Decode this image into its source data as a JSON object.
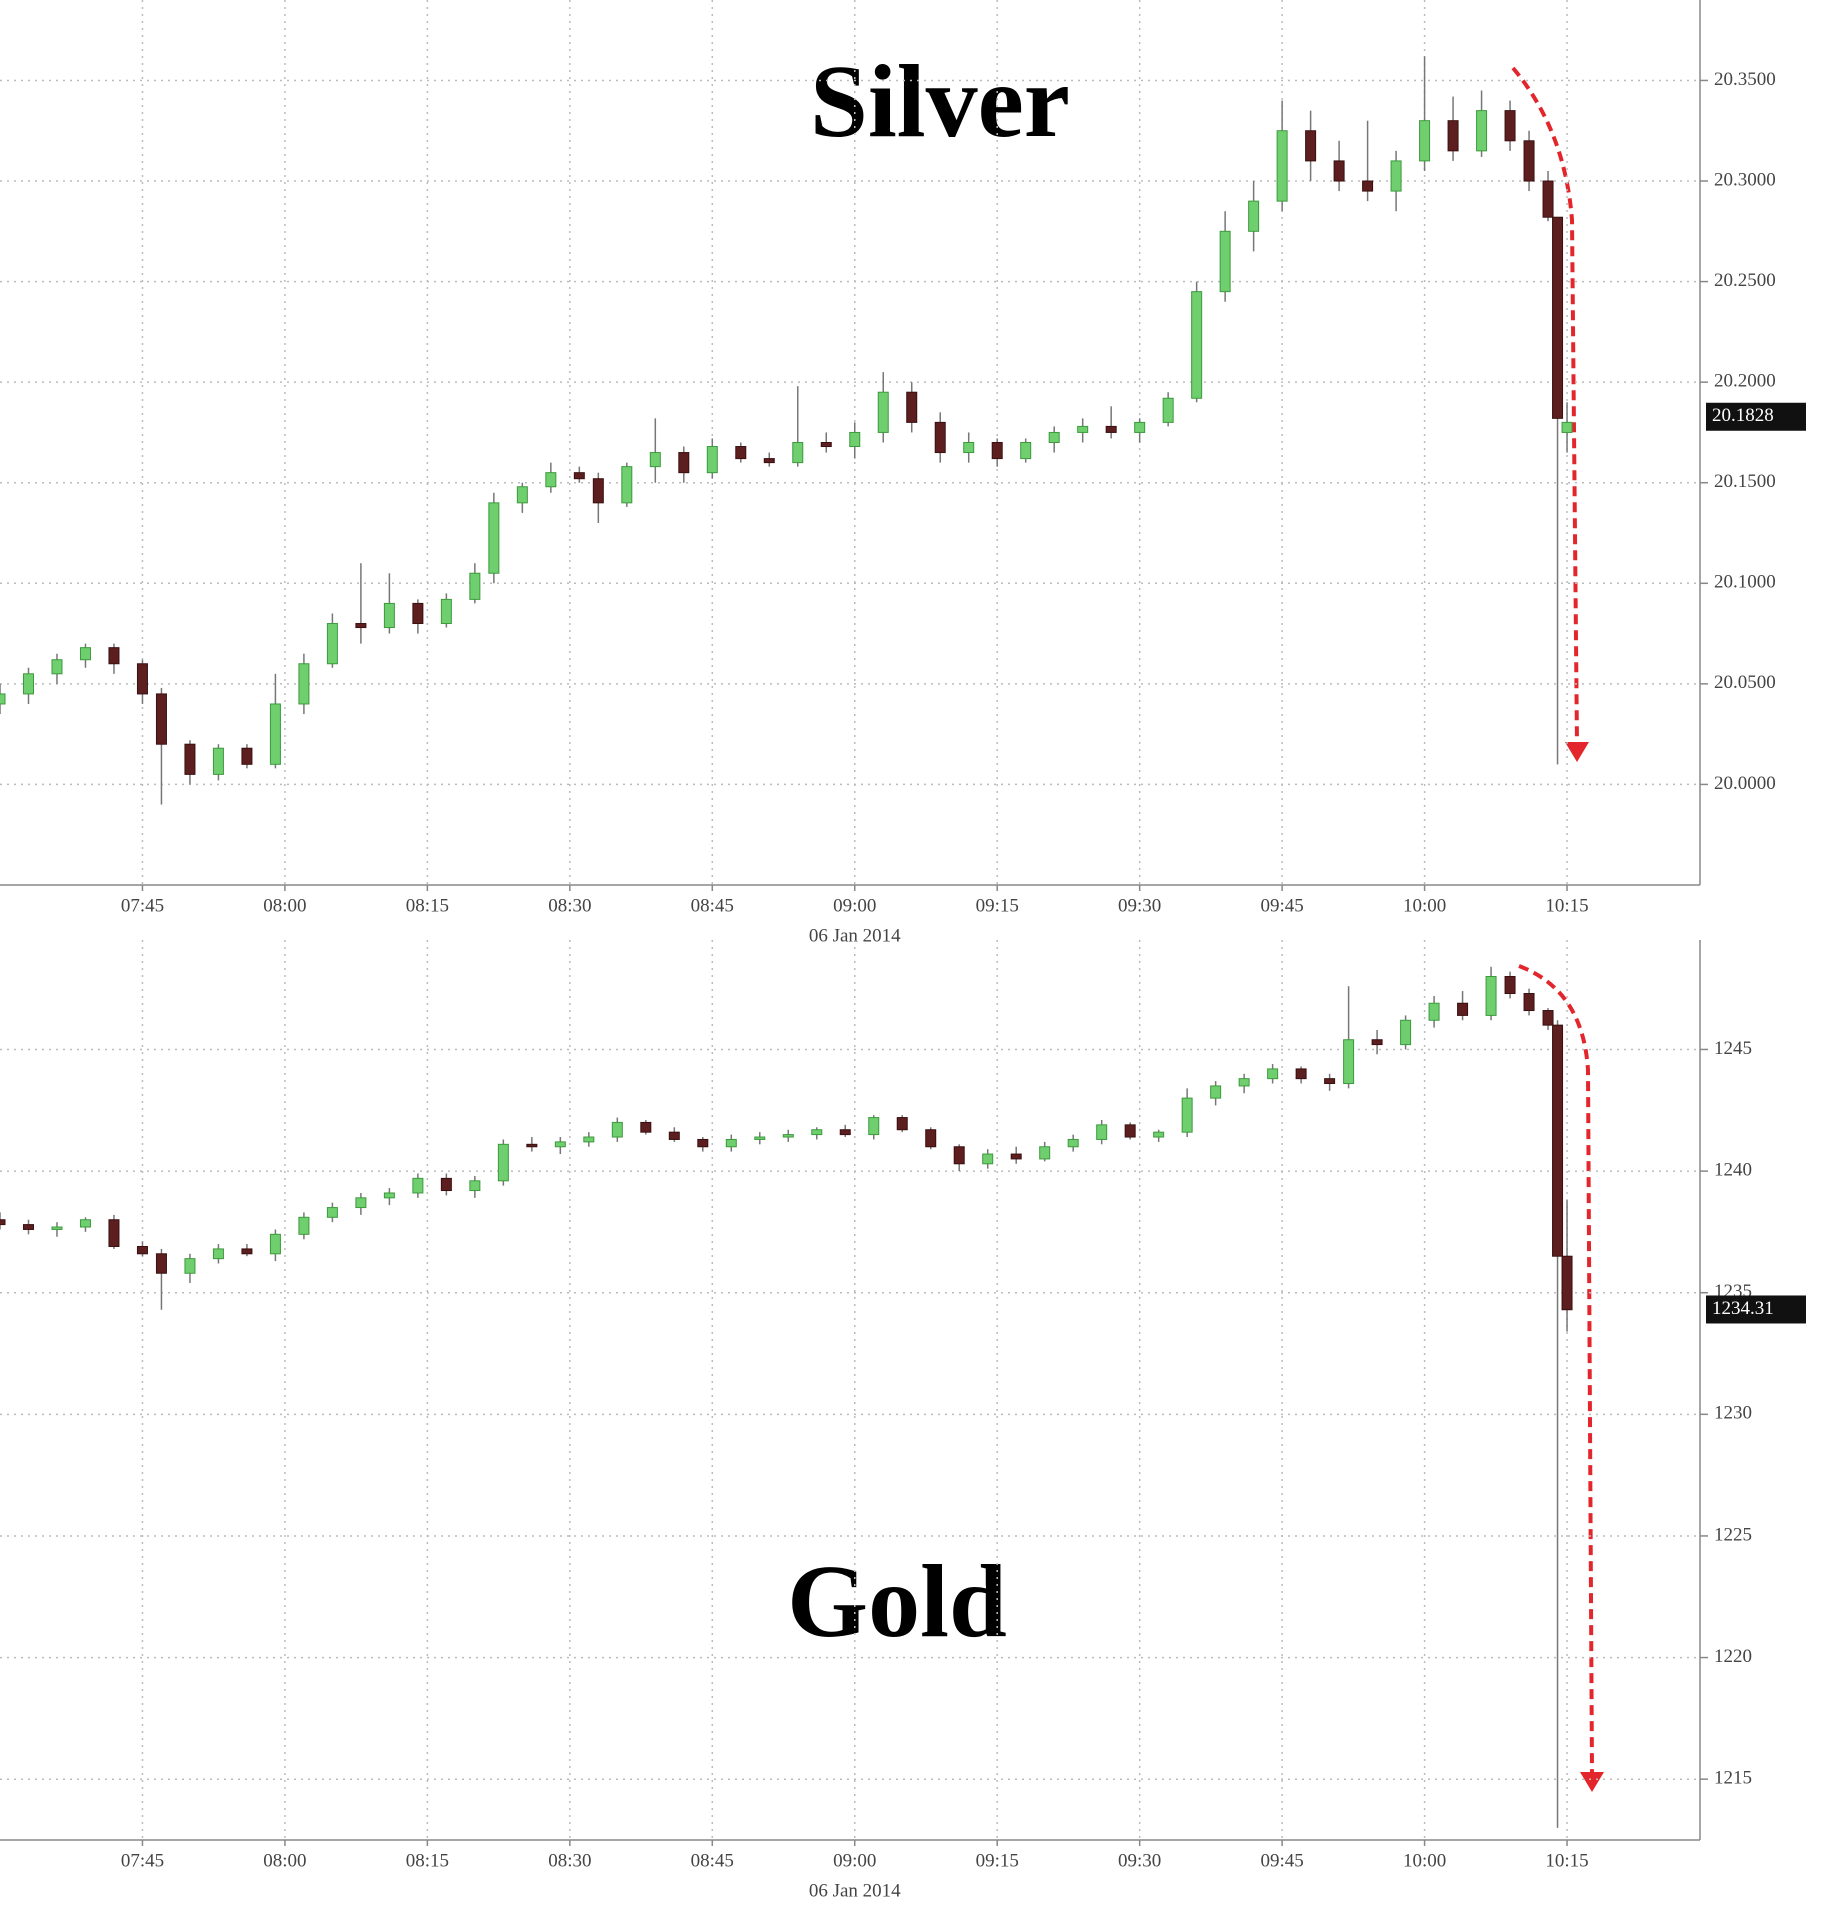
{
  "chart_data": [
    {
      "type": "candlestick",
      "title": "Silver",
      "date_label": "06 Jan 2014",
      "grid": true,
      "up_color": "#6fcf6f",
      "down_color": "#5c1e1e",
      "last_price": 20.1828,
      "xlim": [
        "07:30",
        "10:29"
      ],
      "xticks": [
        "07:45",
        "08:00",
        "08:15",
        "08:30",
        "08:45",
        "09:00",
        "09:15",
        "09:30",
        "09:45",
        "10:00",
        "10:15"
      ],
      "ylim": [
        19.95,
        20.39
      ],
      "yticks": [
        {
          "value": 20.0,
          "label": "20.0000"
        },
        {
          "value": 20.05,
          "label": "20.0500"
        },
        {
          "value": 20.1,
          "label": "20.1000"
        },
        {
          "value": 20.15,
          "label": "20.1500"
        },
        {
          "value": 20.2,
          "label": "20.2000"
        },
        {
          "value": 20.25,
          "label": "20.2500"
        },
        {
          "value": 20.3,
          "label": "20.3000"
        },
        {
          "value": 20.35,
          "label": "20.3500"
        }
      ],
      "x": [
        "07:30",
        "07:33",
        "07:36",
        "07:39",
        "07:42",
        "07:45",
        "07:47",
        "07:50",
        "07:53",
        "07:56",
        "07:59",
        "08:02",
        "08:05",
        "08:08",
        "08:11",
        "08:14",
        "08:17",
        "08:20",
        "08:22",
        "08:25",
        "08:28",
        "08:31",
        "08:33",
        "08:36",
        "08:39",
        "08:42",
        "08:45",
        "08:48",
        "08:51",
        "08:54",
        "08:57",
        "09:00",
        "09:03",
        "09:06",
        "09:09",
        "09:12",
        "09:15",
        "09:18",
        "09:21",
        "09:24",
        "09:27",
        "09:30",
        "09:33",
        "09:36",
        "09:39",
        "09:42",
        "09:45",
        "09:48",
        "09:51",
        "09:54",
        "09:57",
        "10:00",
        "10:03",
        "10:06",
        "10:09",
        "10:11",
        "10:13",
        "10:14",
        "10:15"
      ],
      "open": [
        20.04,
        20.045,
        20.055,
        20.062,
        20.068,
        20.06,
        20.045,
        20.02,
        20.005,
        20.018,
        20.01,
        20.04,
        20.06,
        20.08,
        20.078,
        20.09,
        20.08,
        20.092,
        20.105,
        20.14,
        20.148,
        20.155,
        20.152,
        20.14,
        20.158,
        20.165,
        20.155,
        20.168,
        20.162,
        20.16,
        20.17,
        20.168,
        20.175,
        20.195,
        20.18,
        20.165,
        20.17,
        20.162,
        20.17,
        20.175,
        20.178,
        20.175,
        20.18,
        20.192,
        20.245,
        20.275,
        20.29,
        20.325,
        20.31,
        20.3,
        20.295,
        20.31,
        20.33,
        20.315,
        20.335,
        20.32,
        20.3,
        20.282,
        20.175
      ],
      "high": [
        20.05,
        20.058,
        20.065,
        20.07,
        20.07,
        20.062,
        20.048,
        20.022,
        20.02,
        20.02,
        20.055,
        20.065,
        20.085,
        20.11,
        20.105,
        20.092,
        20.095,
        20.11,
        20.145,
        20.15,
        20.16,
        20.158,
        20.155,
        20.16,
        20.182,
        20.168,
        20.172,
        20.17,
        20.165,
        20.198,
        20.175,
        20.18,
        20.205,
        20.2,
        20.185,
        20.175,
        20.172,
        20.172,
        20.178,
        20.182,
        20.188,
        20.182,
        20.195,
        20.25,
        20.285,
        20.3,
        20.34,
        20.335,
        20.32,
        20.33,
        20.315,
        20.362,
        20.342,
        20.345,
        20.34,
        20.325,
        20.305,
        20.282,
        20.19
      ],
      "low": [
        20.035,
        20.04,
        20.05,
        20.058,
        20.055,
        20.04,
        19.99,
        20.0,
        20.002,
        20.008,
        20.008,
        20.035,
        20.058,
        20.07,
        20.075,
        20.075,
        20.078,
        20.09,
        20.1,
        20.135,
        20.145,
        20.15,
        20.13,
        20.138,
        20.15,
        20.15,
        20.152,
        20.16,
        20.158,
        20.158,
        20.165,
        20.162,
        20.17,
        20.175,
        20.16,
        20.16,
        20.158,
        20.16,
        20.165,
        20.17,
        20.172,
        20.17,
        20.178,
        20.19,
        20.24,
        20.265,
        20.285,
        20.3,
        20.295,
        20.29,
        20.285,
        20.305,
        20.31,
        20.312,
        20.315,
        20.295,
        20.28,
        20.01,
        20.165
      ],
      "close": [
        20.045,
        20.055,
        20.062,
        20.068,
        20.06,
        20.045,
        20.02,
        20.005,
        20.018,
        20.01,
        20.04,
        20.06,
        20.08,
        20.078,
        20.09,
        20.08,
        20.092,
        20.105,
        20.14,
        20.148,
        20.155,
        20.152,
        20.14,
        20.158,
        20.165,
        20.155,
        20.168,
        20.162,
        20.16,
        20.17,
        20.168,
        20.175,
        20.195,
        20.18,
        20.165,
        20.17,
        20.162,
        20.17,
        20.175,
        20.178,
        20.175,
        20.18,
        20.192,
        20.245,
        20.275,
        20.29,
        20.325,
        20.31,
        20.3,
        20.295,
        20.31,
        20.33,
        20.315,
        20.335,
        20.32,
        20.3,
        20.282,
        20.182,
        20.18
      ]
    },
    {
      "type": "candlestick",
      "title": "Gold",
      "date_label": "06 Jan 2014",
      "grid": true,
      "up_color": "#6fcf6f",
      "down_color": "#5c1e1e",
      "last_price": 1234.31,
      "xlim": [
        "07:30",
        "10:29"
      ],
      "xticks": [
        "07:45",
        "08:00",
        "08:15",
        "08:30",
        "08:45",
        "09:00",
        "09:15",
        "09:30",
        "09:45",
        "10:00",
        "10:15"
      ],
      "ylim": [
        1212.5,
        1249.5
      ],
      "yticks": [
        1215,
        1220,
        1225,
        1230,
        1235,
        1240,
        1245
      ],
      "x": [
        "07:30",
        "07:33",
        "07:36",
        "07:39",
        "07:42",
        "07:45",
        "07:47",
        "07:50",
        "07:53",
        "07:56",
        "07:59",
        "08:02",
        "08:05",
        "08:08",
        "08:11",
        "08:14",
        "08:17",
        "08:20",
        "08:23",
        "08:26",
        "08:29",
        "08:32",
        "08:35",
        "08:38",
        "08:41",
        "08:44",
        "08:47",
        "08:50",
        "08:53",
        "08:56",
        "08:59",
        "09:02",
        "09:05",
        "09:08",
        "09:11",
        "09:14",
        "09:17",
        "09:20",
        "09:23",
        "09:26",
        "09:29",
        "09:32",
        "09:35",
        "09:38",
        "09:41",
        "09:44",
        "09:47",
        "09:50",
        "09:52",
        "09:55",
        "09:58",
        "10:01",
        "10:04",
        "10:07",
        "10:09",
        "10:11",
        "10:13",
        "10:14",
        "10:15"
      ],
      "open": [
        1238.0,
        1237.8,
        1237.6,
        1237.7,
        1238.0,
        1236.9,
        1236.6,
        1235.8,
        1236.4,
        1236.8,
        1236.6,
        1237.4,
        1238.1,
        1238.5,
        1238.9,
        1239.1,
        1239.7,
        1239.2,
        1239.6,
        1241.1,
        1241.0,
        1241.2,
        1241.4,
        1242.0,
        1241.6,
        1241.3,
        1241.0,
        1241.3,
        1241.4,
        1241.5,
        1241.7,
        1241.5,
        1242.2,
        1241.7,
        1241.0,
        1240.3,
        1240.7,
        1240.5,
        1241.0,
        1241.3,
        1241.9,
        1241.4,
        1241.6,
        1243.0,
        1243.5,
        1243.8,
        1244.2,
        1243.8,
        1243.6,
        1245.4,
        1245.2,
        1246.2,
        1246.9,
        1246.4,
        1248.0,
        1247.3,
        1246.6,
        1246.0,
        1236.5
      ],
      "high": [
        1238.3,
        1238.0,
        1237.9,
        1238.1,
        1238.2,
        1237.1,
        1236.8,
        1236.6,
        1237.0,
        1237.0,
        1237.6,
        1238.3,
        1238.7,
        1239.1,
        1239.3,
        1239.9,
        1239.9,
        1239.8,
        1241.3,
        1241.4,
        1241.4,
        1241.6,
        1242.2,
        1242.1,
        1241.8,
        1241.4,
        1241.5,
        1241.6,
        1241.7,
        1241.8,
        1241.9,
        1242.3,
        1242.3,
        1241.8,
        1241.1,
        1240.9,
        1241.0,
        1241.2,
        1241.5,
        1242.1,
        1242.0,
        1241.7,
        1243.4,
        1243.7,
        1244.0,
        1244.4,
        1244.3,
        1244.0,
        1247.6,
        1245.8,
        1246.4,
        1247.2,
        1247.4,
        1248.4,
        1248.2,
        1247.5,
        1246.7,
        1246.2,
        1238.8
      ],
      "low": [
        1237.6,
        1237.4,
        1237.3,
        1237.5,
        1236.8,
        1236.5,
        1234.3,
        1235.4,
        1236.2,
        1236.5,
        1236.3,
        1237.2,
        1237.9,
        1238.2,
        1238.6,
        1238.9,
        1239.0,
        1238.9,
        1239.4,
        1240.8,
        1240.7,
        1241.0,
        1241.2,
        1241.5,
        1241.2,
        1240.8,
        1240.8,
        1241.1,
        1241.2,
        1241.3,
        1241.4,
        1241.3,
        1241.6,
        1240.9,
        1240.0,
        1240.1,
        1240.3,
        1240.4,
        1240.8,
        1241.1,
        1241.3,
        1241.2,
        1241.4,
        1242.7,
        1243.2,
        1243.6,
        1243.6,
        1243.3,
        1243.4,
        1244.8,
        1245.0,
        1245.9,
        1246.2,
        1246.2,
        1247.1,
        1246.4,
        1245.8,
        1213.0,
        1233.4
      ],
      "close": [
        1237.8,
        1237.6,
        1237.7,
        1238.0,
        1236.9,
        1236.6,
        1235.8,
        1236.4,
        1236.8,
        1236.6,
        1237.4,
        1238.1,
        1238.5,
        1238.9,
        1239.1,
        1239.7,
        1239.2,
        1239.6,
        1241.1,
        1241.0,
        1241.2,
        1241.4,
        1242.0,
        1241.6,
        1241.3,
        1241.0,
        1241.3,
        1241.4,
        1241.5,
        1241.7,
        1241.5,
        1242.2,
        1241.7,
        1241.0,
        1240.3,
        1240.7,
        1240.5,
        1241.0,
        1241.3,
        1241.9,
        1241.4,
        1241.6,
        1243.0,
        1243.5,
        1243.8,
        1244.2,
        1243.8,
        1243.6,
        1245.4,
        1245.2,
        1246.2,
        1246.9,
        1246.4,
        1248.0,
        1247.3,
        1246.6,
        1246.0,
        1236.5,
        1234.3
      ]
    }
  ]
}
